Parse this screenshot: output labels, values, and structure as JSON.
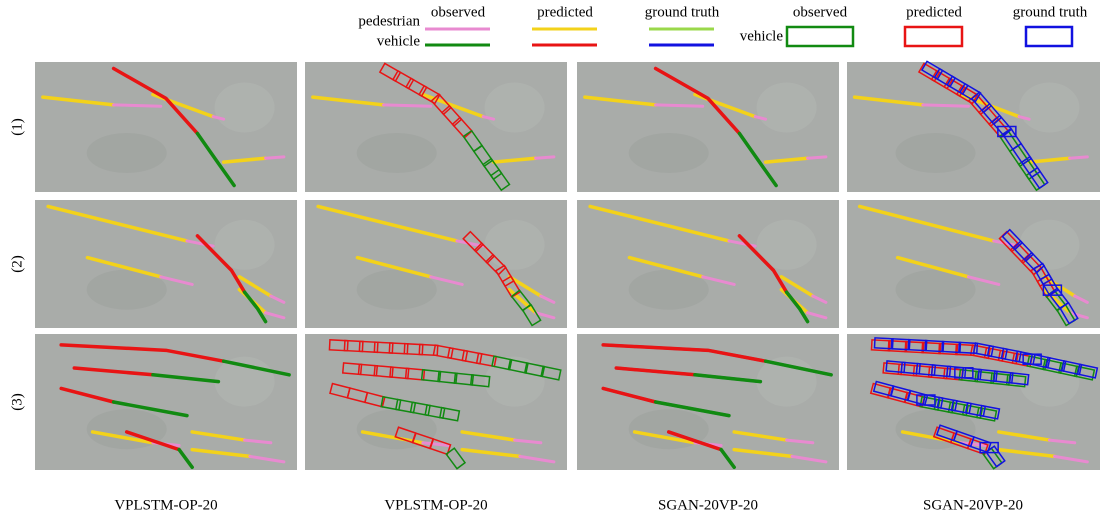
{
  "legend": {
    "line_rows": [
      "pedestrian",
      "vehicle"
    ],
    "line_headers": [
      "observed",
      "predicted",
      "ground truth"
    ],
    "box_label": "vehicle",
    "box_headers": [
      "observed",
      "predicted",
      "ground truth"
    ]
  },
  "rows": [
    "(1)",
    "(2)",
    "(3)"
  ],
  "columns": [
    "VPLSTM-OP-20",
    "VPLSTM-OP-20",
    "SGAN-20VP-20",
    "SGAN-20VP-20"
  ]
}
